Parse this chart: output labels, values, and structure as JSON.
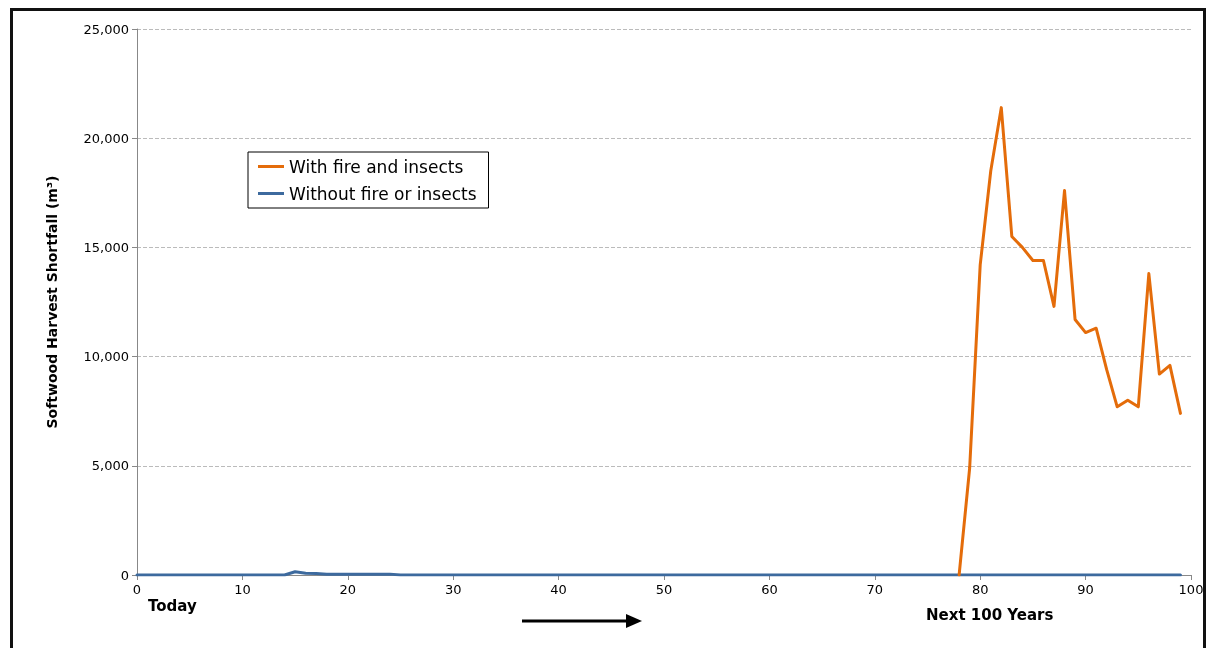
{
  "chart_data": {
    "type": "line",
    "ylabel": "Softwood Harvest Shortfall (m³)",
    "x": [
      0,
      1,
      2,
      3,
      4,
      5,
      6,
      7,
      8,
      9,
      10,
      11,
      12,
      13,
      14,
      15,
      16,
      17,
      18,
      19,
      20,
      21,
      22,
      23,
      24,
      25,
      26,
      27,
      28,
      29,
      30,
      31,
      32,
      33,
      34,
      35,
      36,
      37,
      38,
      39,
      40,
      41,
      42,
      43,
      44,
      45,
      46,
      47,
      48,
      49,
      50,
      51,
      52,
      53,
      54,
      55,
      56,
      57,
      58,
      59,
      60,
      61,
      62,
      63,
      64,
      65,
      66,
      67,
      68,
      69,
      70,
      71,
      72,
      73,
      74,
      75,
      76,
      77,
      78,
      79,
      80,
      81,
      82,
      83,
      84,
      85,
      86,
      87,
      88,
      89,
      90,
      91,
      92,
      93,
      94,
      95,
      96,
      97,
      98,
      99
    ],
    "series": [
      {
        "name": "With fire and insects",
        "color": "#e46c0a",
        "values": [
          null,
          null,
          null,
          null,
          null,
          null,
          null,
          null,
          null,
          null,
          null,
          null,
          null,
          null,
          null,
          null,
          null,
          null,
          null,
          null,
          null,
          null,
          null,
          null,
          null,
          null,
          null,
          null,
          null,
          null,
          null,
          null,
          null,
          null,
          null,
          null,
          null,
          null,
          null,
          null,
          null,
          null,
          null,
          null,
          null,
          null,
          null,
          null,
          null,
          null,
          null,
          null,
          null,
          null,
          null,
          null,
          null,
          null,
          null,
          null,
          null,
          null,
          null,
          null,
          null,
          null,
          null,
          null,
          null,
          null,
          null,
          null,
          null,
          null,
          null,
          null,
          null,
          null,
          0,
          4900,
          14200,
          18500,
          21400,
          15500,
          15000,
          14400,
          14400,
          12300,
          17600,
          11700,
          11100,
          11300,
          9400,
          7700,
          8000,
          7700,
          13800,
          9200,
          9600,
          7400
        ]
      },
      {
        "name": "Without fire or insects",
        "color": "#3d6a9e",
        "values": [
          0,
          0,
          0,
          0,
          0,
          0,
          0,
          0,
          0,
          0,
          0,
          0,
          0,
          0,
          0,
          150,
          80,
          70,
          30,
          40,
          40,
          40,
          40,
          40,
          40,
          0,
          0,
          0,
          0,
          0,
          0,
          0,
          0,
          0,
          0,
          0,
          0,
          0,
          0,
          0,
          0,
          0,
          0,
          0,
          0,
          0,
          0,
          0,
          0,
          0,
          0,
          0,
          0,
          0,
          0,
          0,
          0,
          0,
          0,
          0,
          0,
          0,
          0,
          0,
          0,
          0,
          0,
          0,
          0,
          0,
          0,
          0,
          0,
          0,
          0,
          0,
          0,
          0,
          0,
          0,
          0,
          0,
          0,
          0,
          0,
          0,
          0,
          0,
          0,
          0,
          0,
          0,
          0,
          0,
          0,
          0,
          0,
          0,
          0,
          0
        ]
      }
    ],
    "xlim": [
      0,
      100
    ],
    "xticks": [
      0,
      10,
      20,
      30,
      40,
      50,
      60,
      70,
      80,
      90,
      100
    ],
    "ylim": [
      0,
      25000
    ],
    "yticks": [
      0,
      {
        "value": 5000,
        "label": "5,000"
      },
      {
        "value": 10000,
        "label": "10,000"
      },
      {
        "value": 15000,
        "label": "15,000"
      },
      {
        "value": 20000,
        "label": "20,000"
      },
      {
        "value": 25000,
        "label": "25,000"
      }
    ],
    "annotations": [
      "Today",
      "Next 100 Years"
    ],
    "grid": "y",
    "legend": "top left",
    "marker": "none",
    "line_style": "solid"
  }
}
